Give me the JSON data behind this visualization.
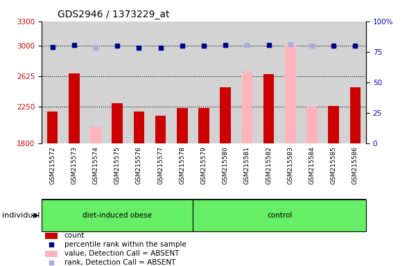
{
  "title": "GDS2946 / 1373229_at",
  "samples": [
    "GSM215572",
    "GSM215573",
    "GSM215574",
    "GSM215575",
    "GSM215576",
    "GSM215577",
    "GSM215578",
    "GSM215579",
    "GSM215580",
    "GSM215581",
    "GSM215582",
    "GSM215583",
    "GSM215584",
    "GSM215585",
    "GSM215586"
  ],
  "count_values": [
    2195,
    2660,
    null,
    2295,
    2195,
    2145,
    2240,
    2235,
    2490,
    null,
    2650,
    null,
    null,
    2260,
    2490
  ],
  "absent_value": [
    null,
    null,
    2010,
    null,
    null,
    null,
    null,
    null,
    null,
    2690,
    null,
    3010,
    2255,
    null,
    null
  ],
  "rank_values": [
    2980,
    3010,
    null,
    3000,
    2975,
    2972,
    2998,
    3002,
    3008,
    null,
    3008,
    null,
    null,
    3000,
    3002
  ],
  "absent_rank": [
    null,
    null,
    2978,
    null,
    null,
    null,
    null,
    null,
    null,
    3012,
    null,
    3015,
    2998,
    null,
    null
  ],
  "groups": [
    "diet-induced obese",
    "diet-induced obese",
    "diet-induced obese",
    "diet-induced obese",
    "diet-induced obese",
    "diet-induced obese",
    "diet-induced obese",
    "control",
    "control",
    "control",
    "control",
    "control",
    "control",
    "control",
    "control"
  ],
  "bar_color_present": "#cc0000",
  "bar_color_absent": "#ffb3ba",
  "dot_color_present": "#00008b",
  "dot_color_absent": "#aaaadd",
  "ylim_left": [
    1800,
    3300
  ],
  "ylim_right": [
    0,
    100
  ],
  "yticks_left": [
    1800,
    2250,
    2625,
    3000,
    3300
  ],
  "yticks_right": [
    0,
    25,
    50,
    75,
    100
  ],
  "background_color": "#d3d3d3",
  "group_color": "#66ee66",
  "tick_label_color_left": "#cc0000",
  "tick_label_color_right": "#0000cc"
}
